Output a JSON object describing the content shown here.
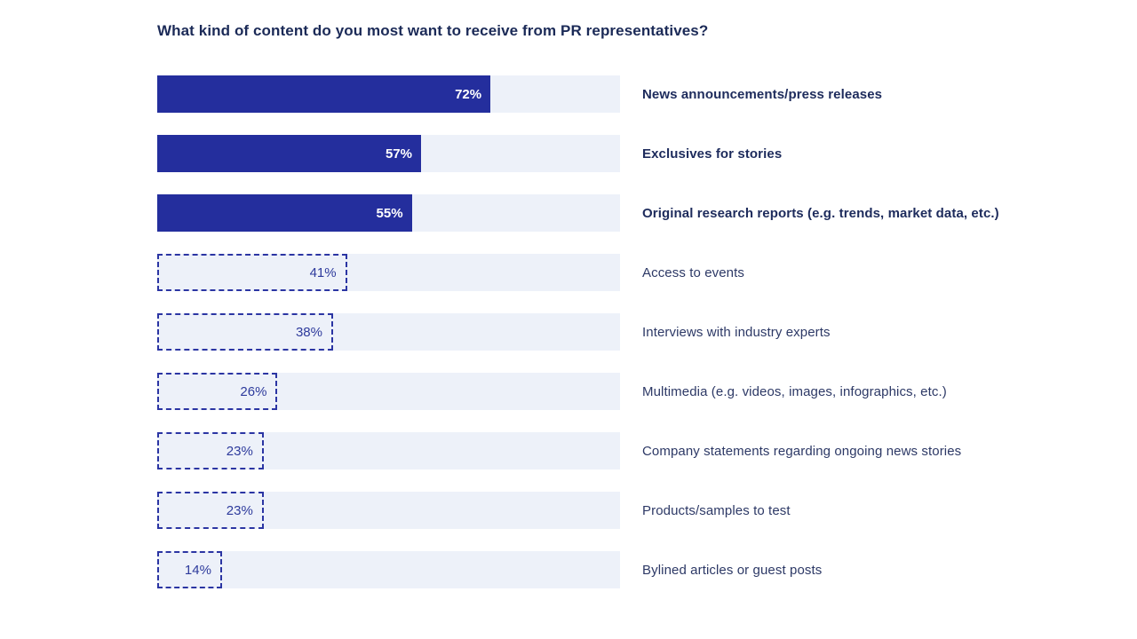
{
  "title": "What kind of content do you most want to receive from PR representatives?",
  "chart_data": {
    "type": "bar",
    "orientation": "horizontal",
    "unit": "%",
    "xlim": [
      0,
      100
    ],
    "grid": false,
    "legend": false,
    "title": "What kind of content do you most want to receive from PR representatives?",
    "xlabel": "",
    "ylabel": "",
    "categories": [
      "News announcements/press releases",
      "Exclusives for stories",
      "Original research reports (e.g. trends, market data, etc.)",
      "Access to events",
      "Interviews with industry experts",
      "Multimedia (e.g. videos, images, infographics, etc.)",
      "Company statements regarding ongoing news stories",
      "Products/samples to test",
      "Bylined articles or guest posts"
    ],
    "values": [
      72,
      57,
      55,
      41,
      38,
      26,
      23,
      23,
      14
    ],
    "value_labels": [
      "72%",
      "57%",
      "55%",
      "41%",
      "38%",
      "26%",
      "23%",
      "23%",
      "14%"
    ],
    "emphasized_solid": [
      true,
      true,
      true,
      false,
      false,
      false,
      false,
      false,
      false
    ],
    "style_note": "top 3 bars solid fill with white bold value, remaining bars dashed-outline with navy value"
  },
  "colors": {
    "bar_solid": "#242e9d",
    "track": "#edf1f9",
    "dashed_border": "#2b35a3",
    "dashed_value_text": "#2d3a9c",
    "title_text": "#1b2a57",
    "label_bold_text": "#1d2b5c",
    "label_regular_text": "#2d3966",
    "background": "#ffffff",
    "solid_value_text": "#ffffff"
  }
}
